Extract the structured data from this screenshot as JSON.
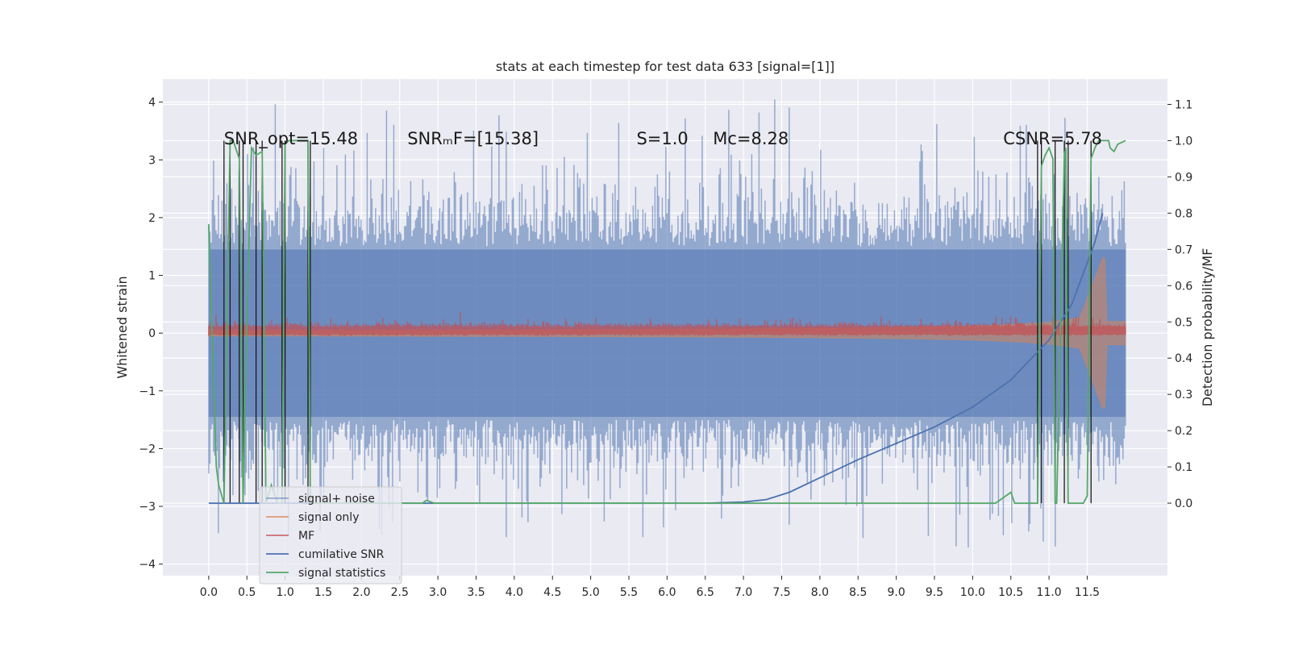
{
  "chart_data": {
    "type": "line",
    "title": "stats at each timestep for test data 633 [signal=[1]]",
    "ylabel": "Whitened strain",
    "y2label": "Detection probability/MF",
    "xlim": [
      -0.6,
      12.55
    ],
    "ylim": [
      -4.2,
      4.4
    ],
    "y2lim": [
      -0.2,
      1.17
    ],
    "x_ticks": [
      0.0,
      0.5,
      1.0,
      1.5,
      2.0,
      2.5,
      3.0,
      3.5,
      4.0,
      4.5,
      5.0,
      5.5,
      6.0,
      6.5,
      7.0,
      7.5,
      8.0,
      8.5,
      9.0,
      9.5,
      10.0,
      10.5,
      11.0,
      11.5
    ],
    "x_tick_labels": [
      "0.0",
      "0.5",
      "1.0",
      "1.5",
      "2.0",
      "2.5",
      "3.0",
      "3.5",
      "4.0",
      "4.5",
      "5.0",
      "5.5",
      "6.0",
      "6.5",
      "7.0",
      "7.5",
      "8.0",
      "8.5",
      "9.0",
      "9.5",
      "10.0",
      "10.5",
      "11.0",
      "11.5"
    ],
    "y_ticks": [
      -4,
      -3,
      -2,
      -1,
      0,
      1,
      2,
      3,
      4
    ],
    "y_tick_labels": [
      "−4",
      "−3",
      "−2",
      "−1",
      "0",
      "1",
      "2",
      "3",
      "4"
    ],
    "y2_ticks": [
      0.0,
      0.1,
      0.2,
      0.3,
      0.4,
      0.5,
      0.6,
      0.7,
      0.8,
      0.9,
      1.0,
      1.1
    ],
    "y2_tick_labels": [
      "0.0",
      "0.1",
      "0.2",
      "0.3",
      "0.4",
      "0.5",
      "0.6",
      "0.7",
      "0.8",
      "0.9",
      "1.0",
      "1.1"
    ],
    "grid": true,
    "legend_position": "lower-left",
    "annotations": [
      {
        "text": "SNR_opt=15.48",
        "x": 0.2,
        "y2": 0.99
      },
      {
        "text": "SNRₘF=[15.38]",
        "x": 2.6,
        "y2": 0.99
      },
      {
        "text": "S=1.0",
        "x": 5.6,
        "y2": 0.99
      },
      {
        "text": "Mᴄ=8.28",
        "x": 6.6,
        "y2": 0.99
      },
      {
        "text": "CSNR=5.78",
        "x": 10.4,
        "y2": 0.99
      }
    ],
    "series": [
      {
        "name": "signal+ noise",
        "axis": "left",
        "color": "#4c72b0",
        "kind": "noise-band",
        "x_range": [
          0.0,
          12.0
        ],
        "typical_range": [
          -2.3,
          2.3
        ],
        "peak_max": 4.1,
        "peak_min": -3.75
      },
      {
        "name": "signal only",
        "axis": "left",
        "color": "#dd8452",
        "kind": "chirp",
        "x_range": [
          0.0,
          12.0
        ],
        "amplitude_start": 0.03,
        "amplitude_peak": 1.3,
        "peak_x": 11.65
      },
      {
        "name": "MF",
        "axis": "left",
        "color": "#c44e52",
        "kind": "noise-band",
        "x_range": [
          0.0,
          12.0
        ],
        "typical_range": [
          -0.02,
          0.15
        ]
      },
      {
        "name": "cumilative SNR",
        "axis": "right",
        "color": "#4c72b0",
        "x": [
          0.0,
          1.0,
          2.0,
          3.0,
          4.0,
          5.0,
          6.0,
          6.5,
          7.0,
          7.3,
          7.6,
          8.0,
          8.5,
          9.0,
          9.5,
          10.0,
          10.5,
          11.0,
          11.3,
          11.6,
          11.7
        ],
        "values": [
          0.0,
          0.0,
          0.0,
          0.0,
          0.0,
          0.0,
          0.0,
          0.0,
          0.003,
          0.01,
          0.03,
          0.07,
          0.12,
          0.165,
          0.21,
          0.265,
          0.34,
          0.45,
          0.55,
          0.72,
          0.8
        ]
      },
      {
        "name": "signal statistics",
        "axis": "right",
        "color": "#55a868",
        "x": [
          0.0,
          0.1,
          0.13,
          0.2,
          0.28,
          0.32,
          0.4,
          0.45,
          0.5,
          0.56,
          0.62,
          0.7,
          0.75,
          0.82,
          0.9,
          0.96,
          1.0,
          1.05,
          1.1,
          1.15,
          1.3,
          1.33,
          1.4,
          1.45,
          1.5,
          1.8,
          2.8,
          2.85,
          2.95,
          3.0,
          5.0,
          8.0,
          10.3,
          10.5,
          10.55,
          10.6,
          10.85,
          10.9,
          10.95,
          11.0,
          11.05,
          11.08,
          11.1,
          11.2,
          11.22,
          11.25,
          11.3,
          11.45,
          11.5,
          11.55,
          11.6,
          11.65,
          11.7,
          11.78,
          11.8,
          11.85,
          11.9,
          12.0
        ],
        "values": [
          0.77,
          0.1,
          0.05,
          0.0,
          1.0,
          1.0,
          0.95,
          0.0,
          0.5,
          0.98,
          0.96,
          0.97,
          0.0,
          0.05,
          0.0,
          0.0,
          0.99,
          1.0,
          1.0,
          1.0,
          1.0,
          0.0,
          0.0,
          0.0,
          0.0,
          0.0,
          0.0,
          0.008,
          0.0,
          0.0,
          0.0,
          0.0,
          0.0,
          0.03,
          0.0,
          0.0,
          0.0,
          0.93,
          0.96,
          0.98,
          0.95,
          0.0,
          0.0,
          0.96,
          0.98,
          0.0,
          0.0,
          0.0,
          0.02,
          0.95,
          0.98,
          1.0,
          1.0,
          1.0,
          0.98,
          0.97,
          0.99,
          1.0
        ]
      }
    ],
    "vertical_markers": [
      0.2,
      0.28,
      0.4,
      0.45,
      0.62,
      0.7,
      0.96,
      1.0,
      1.3,
      1.33,
      10.85,
      10.9,
      11.08,
      11.2,
      11.25,
      11.55
    ]
  }
}
